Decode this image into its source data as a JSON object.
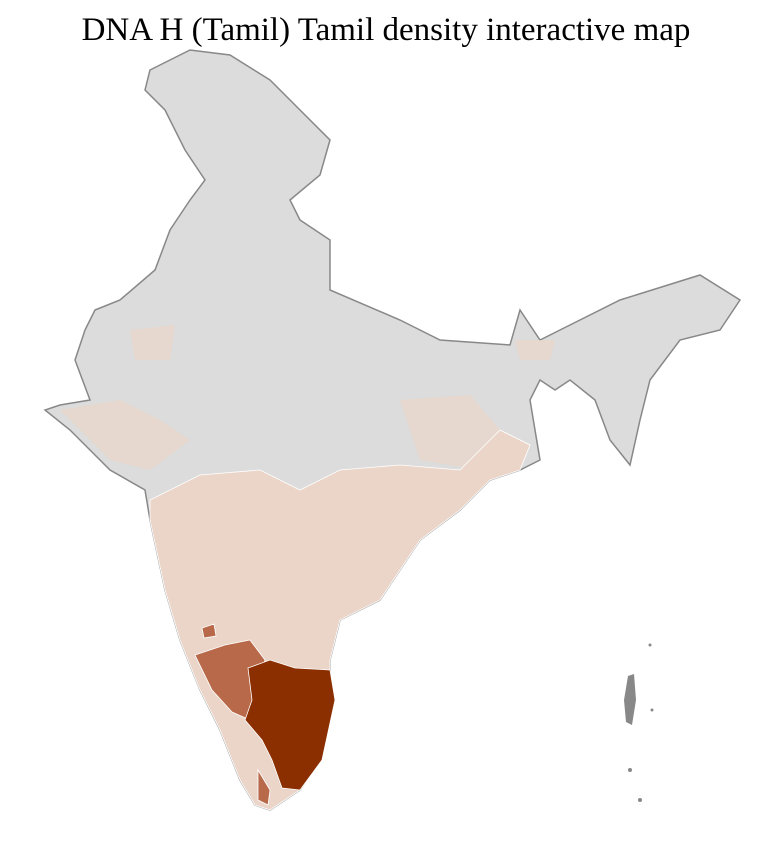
{
  "title": "DNA H (Tamil) Tamil density interactive map",
  "colors": {
    "no_data": "#dcdcdc",
    "low": "#ead5c8",
    "medium": "#b8694a",
    "high": "#8b2e00",
    "border": "#888888",
    "district_border": "#ffffff"
  },
  "regions": [
    {
      "name": "india-base",
      "level": "no_data"
    },
    {
      "name": "peninsula-low-density",
      "level": "low"
    },
    {
      "name": "central-low-density",
      "level": "low"
    },
    {
      "name": "karnataka-south-medium-density",
      "level": "medium"
    },
    {
      "name": "tamil-nadu-high-density",
      "level": "high"
    }
  ]
}
